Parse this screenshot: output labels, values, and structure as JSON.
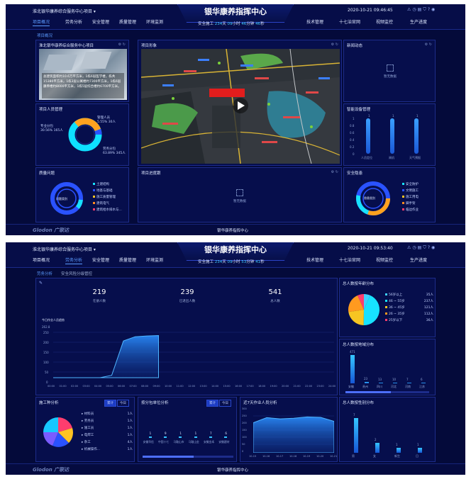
{
  "shot1": {
    "project": "淮北银华康养综合服务中心项目 ▾",
    "title": "银华康养指挥中心",
    "datetime": "2020-10-21 09:46:45",
    "safety": {
      "prefix": "安全施工",
      "days": "234",
      "d": "天",
      "hours": "09",
      "h": "小时",
      "minutes": "46",
      "m": "分钟",
      "seconds": "46",
      "s": "秒"
    },
    "nav_left": [
      "项目概况",
      "劳务分析",
      "安全管理",
      "质量管理",
      "环境监测"
    ],
    "nav_right": [
      "技术管理",
      "十七治官网",
      "视频监控",
      "生产进度"
    ],
    "sub_tabs": [
      "项目概况"
    ],
    "intro": {
      "title": "淮北银华康养综合服务中心项目",
      "text": "总建筑面积约10.6万平方米，1栋6层医学楼，栋共15380平方米，1栋3层公寓楼约7300平方米，1栋6层康养楼约8000平方米，1栋5层综合楼约6700平方米。"
    },
    "personnel": {
      "title": "项目人员管理",
      "a_label": "管理人员",
      "a_pct": "5.55%",
      "a_cnt": "30人",
      "b_label": "专业分包",
      "b_pct": "30.56%",
      "b_cnt": "165人",
      "c_label": "劳务分包",
      "c_pct": "63.89%",
      "c_cnt": "345人"
    },
    "quality": {
      "title": "质量问题",
      "center": "问题类别",
      "items": [
        "土建结构",
        "地基与基础",
        "施工质量管理",
        "建筑电气",
        "建筑给水排水与..."
      ]
    },
    "map": {
      "title": "项目形象"
    },
    "news": {
      "title": "新闻动态",
      "empty": "暂无数据"
    },
    "devices": {
      "title": "智能设备管理",
      "yticks": [
        "1",
        "0.8",
        "0.6",
        "0.4",
        "0.2",
        "0"
      ],
      "bars": [
        {
          "label": "人员定位",
          "value": "1"
        },
        {
          "label": "闸机",
          "value": "1"
        },
        {
          "label": "天气预报",
          "value": "1"
        }
      ]
    },
    "progress": {
      "title": "项目进度跟",
      "empty": "暂无数据"
    },
    "safety_hidden": {
      "title": "安全隐患",
      "center": "隐患类别",
      "items": [
        "安全防护",
        "文明施工",
        "施工用电",
        "脚手架",
        "临边作业"
      ]
    },
    "footer": "银华康养指挥中心",
    "logo": "Glodon 广联达"
  },
  "shot2": {
    "project": "淮北银华康养综合服务中心项目 ▾",
    "title": "银华康养指挥中心",
    "datetime": "2020-10-21 09:53:40",
    "safety": {
      "prefix": "安全施工",
      "days": "234",
      "d": "天",
      "hours": "09",
      "h": "小时",
      "minutes": "53",
      "m": "分钟",
      "seconds": "41",
      "s": "秒"
    },
    "nav_left": [
      "项目概况",
      "劳务分析",
      "安全管理",
      "质量管理",
      "环境监测"
    ],
    "nav_right": [
      "技术管理",
      "十七治官网",
      "视频监控",
      "生产进度"
    ],
    "sub_tabs": [
      "劳务分析",
      "安全风险分级管控"
    ],
    "stats": [
      {
        "value": "219",
        "label": "在册人数"
      },
      {
        "value": "239",
        "label": "已退出人数"
      },
      {
        "value": "541",
        "label": "总人数"
      }
    ],
    "today": {
      "title": "今日作业人员趋势",
      "ymax": "262.8",
      "yticks": [
        "250",
        "200",
        "150",
        "100",
        "50",
        "0"
      ],
      "xticks": [
        "00:00",
        "01:00",
        "02:00",
        "03:00",
        "04:00",
        "05:00",
        "06:00",
        "07:00",
        "08:00",
        "09:00",
        "10:00",
        "11:00",
        "12:00",
        "13:00",
        "14:00",
        "15:00",
        "16:00",
        "17:00",
        "18:00",
        "19:00",
        "20:00",
        "21:00",
        "22:00",
        "23:00",
        "24:00"
      ]
    },
    "age": {
      "title": "总人数按年龄分布",
      "rows": [
        {
          "label": "56岁以上",
          "value": "35人",
          "color": "#3fd0ff"
        },
        {
          "label": "46 ~ 55岁",
          "value": "237人",
          "color": "#17e2ff"
        },
        {
          "label": "36 ~ 45岁",
          "value": "121人",
          "color": "#f6c522"
        },
        {
          "label": "26 ~ 35岁",
          "value": "112人",
          "color": "#ff9a1f"
        },
        {
          "label": "25岁以下",
          "value": "36人",
          "color": "#ff3d6e"
        }
      ]
    },
    "region": {
      "title": "总人数按地域分布",
      "bars": [
        {
          "label": "安徽",
          "value": "471"
        },
        {
          "label": "贵州",
          "value": "23"
        },
        {
          "label": "四川",
          "value": "13"
        },
        {
          "label": "河北",
          "value": "10"
        },
        {
          "label": "河南",
          "value": "7"
        },
        {
          "label": "江苏",
          "value": "6"
        }
      ]
    },
    "worktype": {
      "title": "施工种分析",
      "btn1": "累计",
      "btn2": "今日",
      "rows": [
        {
          "label": "材料员",
          "value": "1人"
        },
        {
          "label": "劳务员",
          "value": "1人"
        },
        {
          "label": "施工员",
          "value": "1人"
        },
        {
          "label": "电焊工",
          "value": "1人"
        },
        {
          "label": "杂工",
          "value": "4人"
        },
        {
          "label": "机械操作...",
          "value": "1人"
        }
      ]
    },
    "subcon": {
      "title": "按分包单位分析",
      "btn1": "累计",
      "btn2": "今日",
      "bars": [
        {
          "label": "安徽华信",
          "value": "1"
        },
        {
          "label": "中国十七",
          "value": "9"
        },
        {
          "label": "马鞍山市",
          "value": "1"
        },
        {
          "label": "马鞍山金",
          "value": "1"
        },
        {
          "label": "安徽金禾",
          "value": "7"
        },
        {
          "label": "安徽建材",
          "value": "6"
        }
      ]
    },
    "week": {
      "title": "近7天作业人员分析",
      "yticks": [
        "300",
        "250",
        "200",
        "150",
        "100",
        "50",
        "0"
      ],
      "xticks": [
        "10-15",
        "10-16",
        "10-17",
        "10-18",
        "10-19",
        "10-20",
        "10-21"
      ]
    },
    "gender": {
      "title": "总人数按性别分布",
      "bars": [
        {
          "label": "男",
          "value": "7"
        },
        {
          "label": "女",
          "value": "2"
        },
        {
          "label": "新生",
          "value": "1"
        },
        {
          "label": "日",
          "value": "1"
        }
      ]
    },
    "footer": "银华康养指挥中心",
    "logo": "Glodon 广联达"
  },
  "chart_data": [
    {
      "type": "bar",
      "title": "智能设备管理",
      "categories": [
        "人员定位",
        "闸机",
        "天气预报"
      ],
      "values": [
        1,
        1,
        1
      ],
      "ylim": [
        0,
        1
      ]
    },
    {
      "type": "area",
      "title": "今日作业人员趋势",
      "x": [
        "00:00",
        "01:00",
        "02:00",
        "03:00",
        "04:00",
        "05:00",
        "06:00",
        "07:00",
        "08:00",
        "09:00"
      ],
      "values": [
        0,
        0,
        0,
        0,
        0,
        12,
        190,
        212,
        216,
        218
      ],
      "ylim": [
        0,
        262.8
      ]
    },
    {
      "type": "pie",
      "title": "总人数按年龄分布",
      "categories": [
        "56岁以上",
        "46 ~ 55岁",
        "36 ~ 45岁",
        "26 ~ 35岁",
        "25岁以下"
      ],
      "values": [
        35,
        237,
        121,
        112,
        36
      ]
    },
    {
      "type": "bar",
      "title": "总人数按地域分布",
      "categories": [
        "安徽",
        "贵州",
        "四川",
        "河北",
        "河南",
        "江苏"
      ],
      "values": [
        471,
        23,
        13,
        10,
        7,
        6
      ]
    },
    {
      "type": "area",
      "title": "近7天作业人员分析",
      "x": [
        "10-15",
        "10-16",
        "10-17",
        "10-18",
        "10-19",
        "10-20",
        "10-21"
      ],
      "values": [
        205,
        240,
        232,
        236,
        245,
        242,
        215
      ],
      "ylim": [
        0,
        300
      ]
    },
    {
      "type": "bar",
      "title": "总人数按性别分布",
      "categories": [
        "男",
        "女",
        "新生",
        "日"
      ],
      "values": [
        7,
        2,
        1,
        1
      ],
      "ylim": [
        0,
        8
      ]
    }
  ]
}
